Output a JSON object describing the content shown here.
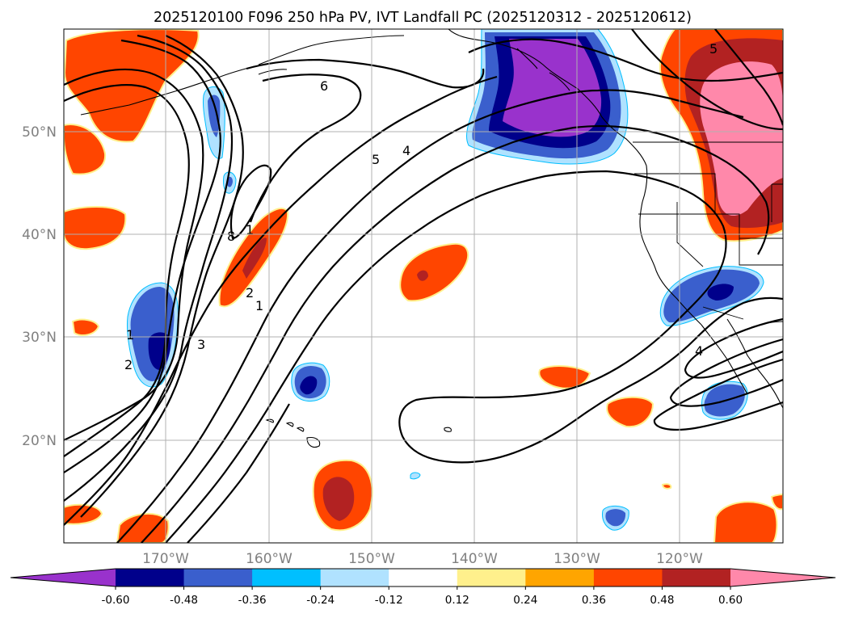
{
  "title": "2025120100 F096 250 hPa PV, IVT Landfall PC (2025120312 - 2025120612)",
  "map": {
    "lat_labels": [
      "50°N",
      "40°N",
      "30°N",
      "20°N"
    ],
    "lon_labels": [
      "170°W",
      "160°W",
      "150°W",
      "140°W",
      "130°W",
      "120°W"
    ]
  },
  "contour_labels": [
    "6",
    "5",
    "4",
    "8",
    "1",
    "2",
    "1",
    "3",
    "1",
    "2",
    "5",
    "4"
  ],
  "colorbar": {
    "ticks": [
      "-0.60",
      "-0.48",
      "-0.36",
      "-0.24",
      "-0.12",
      "0.12",
      "0.24",
      "0.36",
      "0.48",
      "0.60"
    ],
    "colors": {
      "lt_m060": "#9932cc",
      "m060_m048": "#00008b",
      "m048_m036": "#3a5fcd",
      "m036_m024": "#00bfff",
      "m024_m012": "#b0e2ff",
      "m012_012": "#ffffff",
      "p012_024": "#fff08c",
      "p024_036": "#ffa500",
      "p036_048": "#ff4500",
      "p048_060": "#b22222",
      "gt_060": "#ff88aa"
    }
  }
}
